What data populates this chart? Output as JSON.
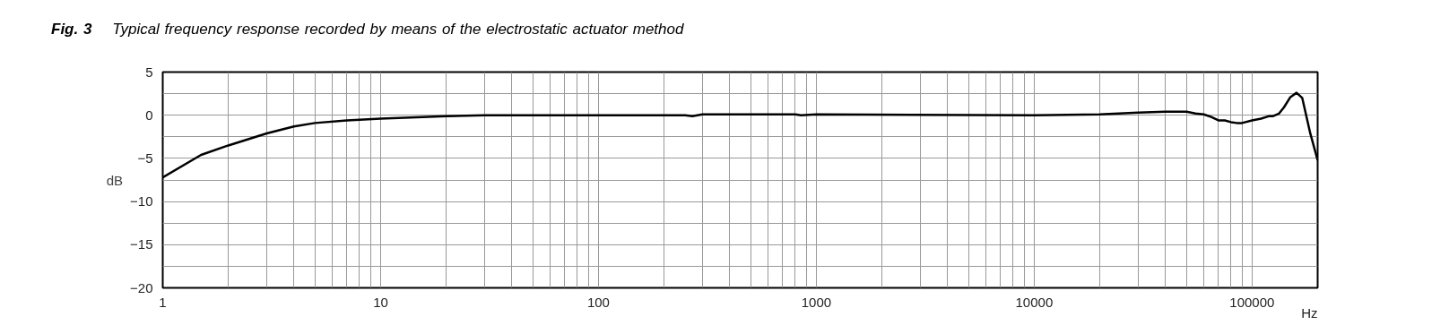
{
  "chart_data": {
    "type": "line",
    "title": "Fig. 3",
    "subtitle": "Typical frequency response recorded by means of the electrostatic actuator method",
    "xlabel": "Hz",
    "ylabel": "dB",
    "log": "x",
    "grid": true,
    "marker": "none",
    "line_style": "solid",
    "xlim": [
      1,
      200000
    ],
    "ylim": [
      -20,
      5
    ],
    "xticks": [
      1,
      {
        "value": 2,
        "label": null
      },
      {
        "value": 3,
        "label": null
      },
      {
        "value": 4,
        "label": null
      },
      {
        "value": 5,
        "label": null
      },
      {
        "value": 6,
        "label": null
      },
      {
        "value": 7,
        "label": null
      },
      {
        "value": 8,
        "label": null
      },
      {
        "value": 9,
        "label": null
      },
      10,
      {
        "value": 20,
        "label": null
      },
      {
        "value": 30,
        "label": null
      },
      {
        "value": 40,
        "label": null
      },
      {
        "value": 50,
        "label": null
      },
      {
        "value": 60,
        "label": null
      },
      {
        "value": 70,
        "label": null
      },
      {
        "value": 80,
        "label": null
      },
      {
        "value": 90,
        "label": null
      },
      100,
      {
        "value": 200,
        "label": null
      },
      {
        "value": 300,
        "label": null
      },
      {
        "value": 400,
        "label": null
      },
      {
        "value": 500,
        "label": null
      },
      {
        "value": 600,
        "label": null
      },
      {
        "value": 700,
        "label": null
      },
      {
        "value": 800,
        "label": null
      },
      {
        "value": 900,
        "label": null
      },
      1000,
      {
        "value": 2000,
        "label": null
      },
      {
        "value": 3000,
        "label": null
      },
      {
        "value": 4000,
        "label": null
      },
      {
        "value": 5000,
        "label": null
      },
      {
        "value": 6000,
        "label": null
      },
      {
        "value": 7000,
        "label": null
      },
      {
        "value": 8000,
        "label": null
      },
      {
        "value": 9000,
        "label": null
      },
      10000,
      {
        "value": 20000,
        "label": null
      },
      {
        "value": 30000,
        "label": null
      },
      {
        "value": 40000,
        "label": null
      },
      {
        "value": 50000,
        "label": null
      },
      {
        "value": 60000,
        "label": null
      },
      {
        "value": 70000,
        "label": null
      },
      {
        "value": 80000,
        "label": null
      },
      {
        "value": 90000,
        "label": null
      },
      100000
    ],
    "yticks": [
      -20,
      {
        "value": -17.5,
        "label": null
      },
      -15,
      {
        "value": -12.5,
        "label": null
      },
      -10,
      {
        "value": -7.5,
        "label": null
      },
      -5,
      {
        "value": -2.5,
        "label": null
      },
      0,
      {
        "value": 2.5,
        "label": null
      },
      5
    ],
    "x": [
      1,
      1.5,
      2,
      3,
      4,
      5,
      7,
      10,
      20,
      30,
      100,
      250,
      270,
      300,
      800,
      850,
      1000,
      10000,
      20000,
      30000,
      40000,
      50000,
      55000,
      60000,
      65000,
      70000,
      75000,
      80000,
      85000,
      90000,
      100000,
      110000,
      120000,
      125000,
      133000,
      140000,
      150000,
      160000,
      170000,
      185000,
      200000
    ],
    "series": [
      {
        "color": "#000000",
        "values": [
          -7.2,
          -4.6,
          -3.5,
          -2.1,
          -1.3,
          -0.9,
          -0.6,
          -0.4,
          -0.1,
          0,
          0,
          0,
          -0.1,
          0.1,
          0.1,
          0,
          0.1,
          0,
          0.1,
          0.3,
          0.4,
          0.4,
          0.2,
          0.1,
          -0.2,
          -0.6,
          -0.6,
          -0.8,
          -0.9,
          -0.9,
          -0.6,
          -0.4,
          -0.1,
          -0.1,
          0.2,
          0.9,
          2.1,
          2.6,
          2.0,
          -2.1,
          -5.2
        ]
      }
    ]
  }
}
